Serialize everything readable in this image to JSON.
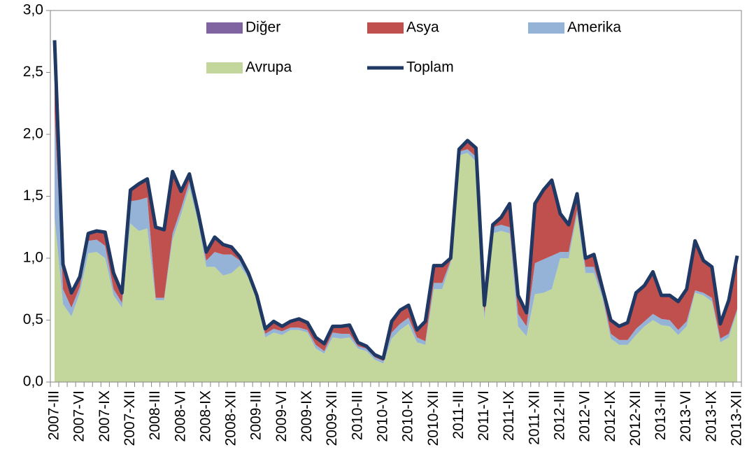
{
  "chart_data": {
    "type": "area",
    "categories": [
      "2007-III",
      null,
      null,
      "2007-VI",
      null,
      null,
      "2007-IX",
      null,
      null,
      "2007-XII",
      null,
      null,
      "2008-III",
      null,
      null,
      "2008-VI",
      null,
      null,
      "2008-IX",
      null,
      null,
      "2008-XII",
      null,
      null,
      "2009-III",
      null,
      null,
      "2009-VI",
      null,
      null,
      "2009-IX",
      null,
      null,
      "2009-XII",
      null,
      null,
      "2010-III",
      null,
      null,
      "2010-VI",
      null,
      null,
      "2010-IX",
      null,
      null,
      "2010-XII",
      null,
      null,
      "2011-III",
      null,
      null,
      "2011-VI",
      null,
      null,
      "2011-IX",
      null,
      null,
      "2011-XII",
      null,
      null,
      "2012-III",
      null,
      null,
      "2012-VI",
      null,
      null,
      "2012-IX",
      null,
      null,
      "2012-XII",
      null,
      null,
      "2013-III",
      null,
      null,
      "2013-VI",
      null,
      null,
      "2013-IX",
      null,
      null,
      "2013-XII"
    ],
    "series": [
      {
        "name": "Diğer",
        "color": "#8064a2",
        "values": [
          0.01,
          0.01,
          0.01,
          0.01,
          0.01,
          0.01,
          0.01,
          0.01,
          0.01,
          0.01,
          0.01,
          0.01,
          0.01,
          0.01,
          0.01,
          0.01,
          0.01,
          0.01,
          0.01,
          0.01,
          0.01,
          0.01,
          0.01,
          0.01,
          0.01,
          0.01,
          0.01,
          0.01,
          0.01,
          0.01,
          0.01,
          0.01,
          0.01,
          0.01,
          0.01,
          0.01,
          0.01,
          0.01,
          0.01,
          0.01,
          0.01,
          0.01,
          0.01,
          0.01,
          0.01,
          0.01,
          0.01,
          0.01,
          0.01,
          0.01,
          0.01,
          0.01,
          0.01,
          0.01,
          0.01,
          0.01,
          0.01,
          0.01,
          0.01,
          0.01,
          0.01,
          0.01,
          0.01,
          0.01,
          0.01,
          0.01,
          0.01,
          0.01,
          0.01,
          0.01,
          0.01,
          0.01,
          0.01,
          0.01,
          0.01,
          0.01,
          0.01,
          0.01,
          0.01,
          0.01,
          0.01,
          0.01
        ]
      },
      {
        "name": "Asya",
        "color": "#c0504d",
        "values": [
          0.57,
          0.19,
          0.11,
          0.07,
          0.05,
          0.06,
          0.1,
          0.12,
          0.07,
          0.08,
          0.12,
          0.14,
          0.56,
          0.54,
          0.49,
          0.13,
          0.05,
          0.03,
          0.06,
          0.11,
          0.07,
          0.05,
          0.02,
          0.01,
          0.01,
          0.03,
          0.05,
          0.03,
          0.04,
          0.06,
          0.05,
          0.05,
          0.05,
          0.04,
          0.05,
          0.06,
          0.02,
          0.01,
          0.01,
          0.01,
          0.08,
          0.1,
          0.09,
          0.05,
          0.15,
          0.13,
          0.13,
          0.01,
          0.01,
          0.06,
          0.06,
          0.06,
          0.01,
          0.05,
          0.18,
          0.14,
          0.1,
          0.47,
          0.55,
          0.6,
          0.3,
          0.21,
          0.12,
          0.06,
          0.09,
          0.04,
          0.1,
          0.1,
          0.13,
          0.28,
          0.28,
          0.33,
          0.18,
          0.19,
          0.22,
          0.25,
          0.39,
          0.25,
          0.24,
          0.11,
          0.26,
          0.42
        ]
      },
      {
        "name": "Amerika",
        "color": "#95b3d7",
        "values": [
          0.85,
          0.12,
          0.07,
          0.05,
          0.1,
          0.1,
          0.1,
          0.05,
          0.04,
          0.18,
          0.25,
          0.25,
          0.02,
          0.02,
          0.05,
          0.05,
          0.05,
          0.04,
          0.05,
          0.12,
          0.17,
          0.15,
          0.04,
          0.02,
          0.02,
          0.03,
          0.03,
          0.03,
          0.02,
          0.02,
          0.02,
          0.03,
          0.02,
          0.04,
          0.04,
          0.03,
          0.02,
          0.02,
          0.02,
          0.02,
          0.05,
          0.05,
          0.05,
          0.04,
          0.03,
          0.05,
          0.05,
          0.02,
          0.03,
          0.03,
          0.04,
          0.05,
          0.05,
          0.05,
          0.05,
          0.1,
          0.08,
          0.25,
          0.27,
          0.27,
          0.05,
          0.05,
          0.04,
          0.05,
          0.05,
          0.03,
          0.04,
          0.04,
          0.04,
          0.05,
          0.04,
          0.05,
          0.05,
          0.05,
          0.04,
          0.04,
          0.02,
          0.02,
          0.03,
          0.03,
          0.03,
          0.02
        ]
      },
      {
        "name": "Avrupa",
        "color": "#c3d69b",
        "values": [
          1.33,
          0.63,
          0.53,
          0.72,
          1.04,
          1.05,
          1.0,
          0.7,
          0.6,
          1.28,
          1.22,
          1.24,
          0.66,
          0.66,
          1.15,
          1.35,
          1.57,
          1.3,
          0.93,
          0.93,
          0.86,
          0.88,
          0.94,
          0.84,
          0.66,
          0.36,
          0.4,
          0.38,
          0.42,
          0.42,
          0.4,
          0.27,
          0.23,
          0.36,
          0.35,
          0.36,
          0.27,
          0.25,
          0.18,
          0.15,
          0.35,
          0.42,
          0.47,
          0.32,
          0.3,
          0.75,
          0.75,
          0.96,
          1.83,
          1.85,
          1.78,
          0.5,
          1.2,
          1.22,
          1.2,
          0.45,
          0.37,
          0.71,
          0.72,
          0.75,
          1.0,
          1.0,
          1.35,
          0.88,
          0.88,
          0.68,
          0.35,
          0.3,
          0.3,
          0.38,
          0.45,
          0.5,
          0.46,
          0.45,
          0.38,
          0.45,
          0.72,
          0.7,
          0.65,
          0.32,
          0.36,
          0.57
        ]
      },
      {
        "name": "Toplam",
        "color": "#1f3864",
        "type": "line",
        "values": [
          2.76,
          0.95,
          0.72,
          0.85,
          1.2,
          1.22,
          1.21,
          0.88,
          0.72,
          1.55,
          1.6,
          1.64,
          1.25,
          1.23,
          1.7,
          1.54,
          1.68,
          1.38,
          1.05,
          1.17,
          1.11,
          1.09,
          1.01,
          0.88,
          0.7,
          0.43,
          0.49,
          0.45,
          0.49,
          0.51,
          0.48,
          0.36,
          0.31,
          0.45,
          0.45,
          0.46,
          0.32,
          0.29,
          0.22,
          0.19,
          0.49,
          0.58,
          0.62,
          0.42,
          0.49,
          0.94,
          0.94,
          1.0,
          1.88,
          1.95,
          1.89,
          0.62,
          1.27,
          1.33,
          1.44,
          0.7,
          0.56,
          1.44,
          1.55,
          1.63,
          1.36,
          1.27,
          1.52,
          1.0,
          1.03,
          0.76,
          0.5,
          0.45,
          0.48,
          0.72,
          0.78,
          0.89,
          0.7,
          0.7,
          0.65,
          0.75,
          1.14,
          0.98,
          0.93,
          0.47,
          0.66,
          1.02
        ]
      }
    ],
    "stacked": true,
    "ylim": [
      0,
      3
    ],
    "yticks": [
      {
        "value": 0,
        "label": "0,0"
      },
      {
        "value": 0.5,
        "label": "0,5"
      },
      {
        "value": 1,
        "label": "1,0"
      },
      {
        "value": 1.5,
        "label": "1,5"
      },
      {
        "value": 2,
        "label": "2,0"
      },
      {
        "value": 2.5,
        "label": "2,5"
      },
      {
        "value": 3,
        "label": "3,0"
      }
    ],
    "grid": false
  }
}
